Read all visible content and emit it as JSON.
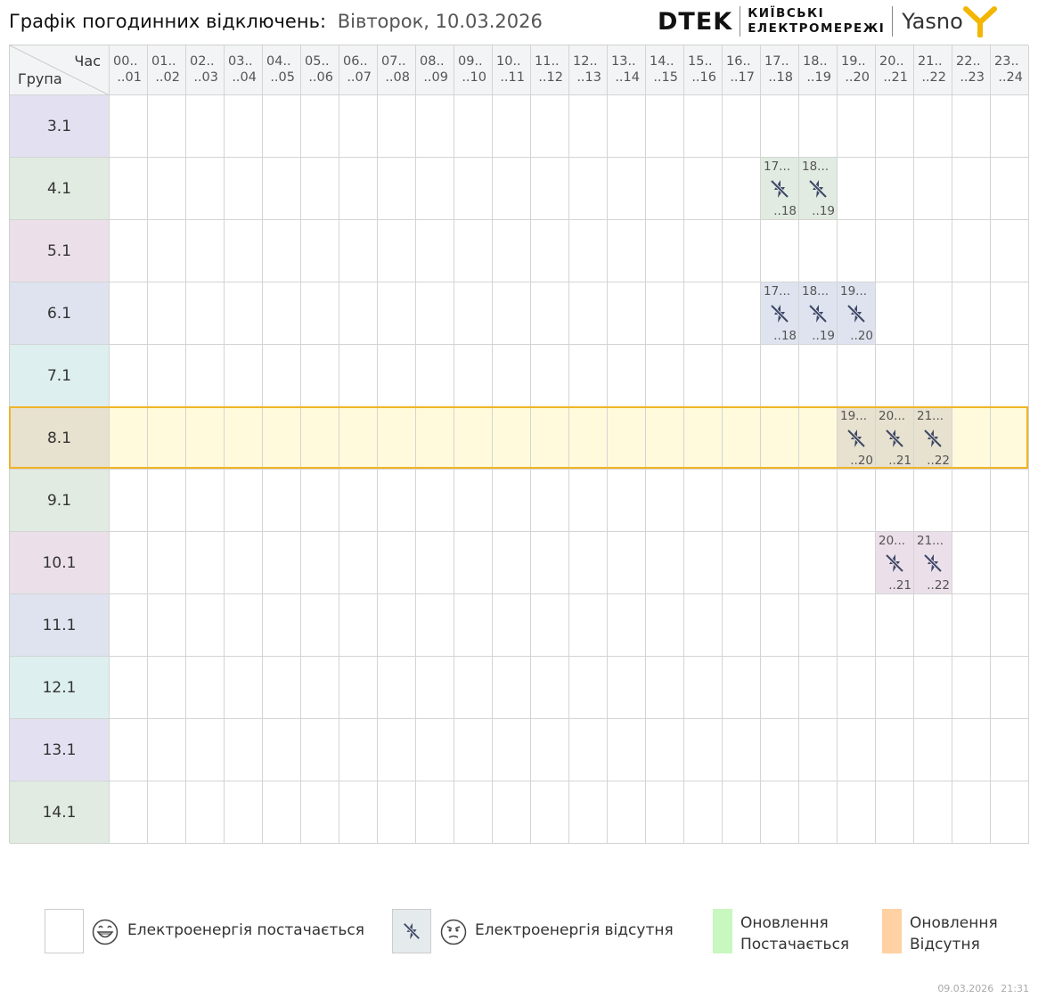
{
  "header": {
    "title": "Графік погодинних відключень:",
    "date": "Вівторок, 10.03.2026"
  },
  "logos": {
    "dtek": "DTEK",
    "kyiv_line1": "КИЇВСЬКІ",
    "kyiv_line2": "ЕЛЕКТРОМЕРЕЖІ",
    "yasno": "Yasno"
  },
  "table": {
    "corner_hour": "Час",
    "corner_group": "Група",
    "hours": [
      {
        "a": "00..",
        "b": "..01"
      },
      {
        "a": "01..",
        "b": "..02"
      },
      {
        "a": "02..",
        "b": "..03"
      },
      {
        "a": "03..",
        "b": "..04"
      },
      {
        "a": "04..",
        "b": "..05"
      },
      {
        "a": "05..",
        "b": "..06"
      },
      {
        "a": "06..",
        "b": "..07"
      },
      {
        "a": "07..",
        "b": "..08"
      },
      {
        "a": "08..",
        "b": "..09"
      },
      {
        "a": "09..",
        "b": "..10"
      },
      {
        "a": "10..",
        "b": "..11"
      },
      {
        "a": "11..",
        "b": "..12"
      },
      {
        "a": "12..",
        "b": "..13"
      },
      {
        "a": "13..",
        "b": "..14"
      },
      {
        "a": "14..",
        "b": "..15"
      },
      {
        "a": "15..",
        "b": "..16"
      },
      {
        "a": "16..",
        "b": "..17"
      },
      {
        "a": "17..",
        "b": "..18"
      },
      {
        "a": "18..",
        "b": "..19"
      },
      {
        "a": "19..",
        "b": "..20"
      },
      {
        "a": "20..",
        "b": "..21"
      },
      {
        "a": "21..",
        "b": "..22"
      },
      {
        "a": "22..",
        "b": "..23"
      },
      {
        "a": "23..",
        "b": "..24"
      }
    ],
    "groups": [
      {
        "name": "3.1",
        "color": "#e3e1f1",
        "off": []
      },
      {
        "name": "4.1",
        "color": "#e1ebe1",
        "off": [
          17,
          18
        ]
      },
      {
        "name": "5.1",
        "color": "#ebe0ea",
        "off": []
      },
      {
        "name": "6.1",
        "color": "#dee3ef",
        "off": [
          17,
          18,
          19
        ]
      },
      {
        "name": "7.1",
        "color": "#ddefef",
        "off": []
      },
      {
        "name": "8.1",
        "color": "#e7e1cf",
        "off": [
          19,
          20,
          21
        ],
        "highlight": true
      },
      {
        "name": "9.1",
        "color": "#e1ebe1",
        "off": []
      },
      {
        "name": "10.1",
        "color": "#ebe0ea",
        "off": [
          20,
          21
        ]
      },
      {
        "name": "11.1",
        "color": "#dee3ef",
        "off": []
      },
      {
        "name": "12.1",
        "color": "#ddefef",
        "off": []
      },
      {
        "name": "13.1",
        "color": "#e3e1f1",
        "off": []
      },
      {
        "name": "14.1",
        "color": "#e1ebe1",
        "off": []
      }
    ],
    "off_labels": {
      "17": {
        "a": "17...",
        "b": "..18"
      },
      "18": {
        "a": "18...",
        "b": "..19"
      },
      "19": {
        "a": "19...",
        "b": "..20"
      },
      "20": {
        "a": "20...",
        "b": "..21"
      },
      "21": {
        "a": "21...",
        "b": "..22"
      }
    },
    "highlight_color": "#fffadb",
    "icon": "power-off-icon"
  },
  "legend": {
    "supplied": "Електроенергія постачається",
    "absent": "Електроенергія відсутня",
    "update_supplied_1": "Оновлення",
    "update_supplied_2": "Постачається",
    "update_absent_1": "Оновлення",
    "update_absent_2": "Відсутня",
    "update_supplied_color": "#c8f7c0",
    "update_absent_color": "#ffd1a3",
    "absent_box_color": "#e5eaec"
  },
  "footer": {
    "date": "09.03.2026",
    "time": "21:31"
  }
}
